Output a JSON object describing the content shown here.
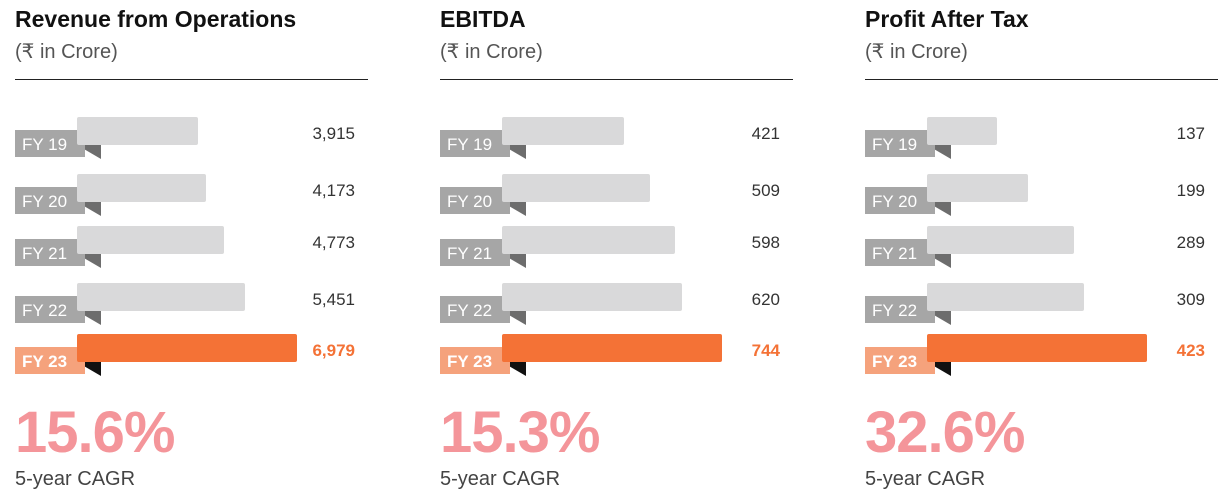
{
  "colors": {
    "bar": "#d9d9da",
    "bar_highlight": "#f47236",
    "label_bg": "#a6a6a6",
    "label_bg_highlight": "#f5a27c",
    "fold": "#6d6d6d",
    "fold_highlight": "#111111",
    "value_text": "#333333",
    "value_text_highlight": "#f47236",
    "cagr": "#f4959a"
  },
  "panels": [
    {
      "title": "Revenue from Operations",
      "subtitle": "(₹ in Crore)",
      "cagr_value": "15.6%",
      "cagr_label": "5-year CAGR"
    },
    {
      "title": "EBITDA",
      "subtitle": "(₹ in Crore)",
      "cagr_value": "15.3%",
      "cagr_label": "5-year CAGR"
    },
    {
      "title": "Profit After Tax",
      "subtitle": "(₹ in Crore)",
      "cagr_value": "32.6%",
      "cagr_label": "5-year CAGR"
    }
  ],
  "chart_data": [
    {
      "type": "bar",
      "orientation": "horizontal",
      "title": "Revenue from Operations",
      "subtitle": "(₹ in Crore)",
      "categories": [
        "FY 19",
        "FY 20",
        "FY 21",
        "FY 22",
        "FY 23"
      ],
      "values": [
        3915,
        4173,
        4773,
        5451,
        6979
      ],
      "value_labels": [
        "3,915",
        "4,173",
        "4,773",
        "5,451",
        "6,979"
      ],
      "highlight_index": 4,
      "xlim": [
        0,
        6979
      ]
    },
    {
      "type": "bar",
      "orientation": "horizontal",
      "title": "EBITDA",
      "subtitle": "(₹ in Crore)",
      "categories": [
        "FY 19",
        "FY 20",
        "FY 21",
        "FY 22",
        "FY 23"
      ],
      "values": [
        421,
        509,
        598,
        620,
        744
      ],
      "value_labels": [
        "421",
        "509",
        "598",
        "620",
        "744"
      ],
      "highlight_index": 4,
      "xlim": [
        0,
        744
      ]
    },
    {
      "type": "bar",
      "orientation": "horizontal",
      "title": "Profit After Tax",
      "subtitle": "(₹ in Crore)",
      "categories": [
        "FY 19",
        "FY 20",
        "FY 21",
        "FY 22",
        "FY 23"
      ],
      "values": [
        137,
        199,
        289,
        309,
        423
      ],
      "value_labels": [
        "137",
        "199",
        "289",
        "309",
        "423"
      ],
      "highlight_index": 4,
      "xlim": [
        0,
        423
      ]
    }
  ]
}
